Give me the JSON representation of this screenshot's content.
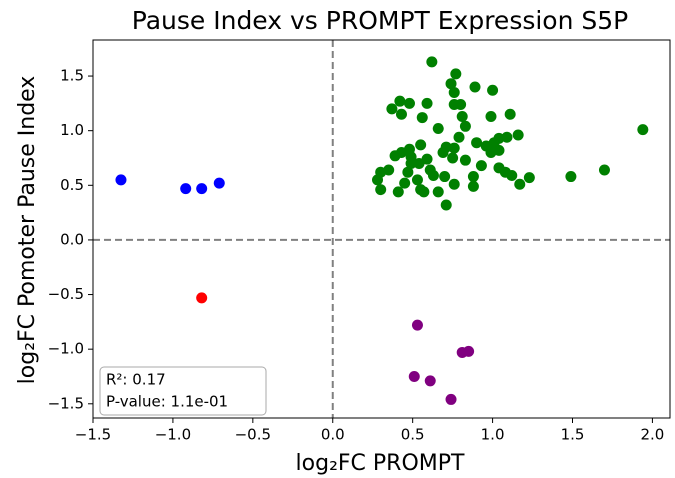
{
  "chart_data": {
    "type": "scatter",
    "title": "Pause Index vs PROMPT Expression S5P",
    "xlabel": "log₂FC PROMPT",
    "ylabel": "log₂FC Pomoter Pause Index",
    "annotation": [
      "R²: 0.17",
      "P-value: 1.1e-01"
    ],
    "xlim": [
      -1.5,
      2.11
    ],
    "ylim": [
      -1.63,
      1.83
    ],
    "xticks": [
      {
        "value": -1.5,
        "label": "−1.5"
      },
      {
        "value": -1.0,
        "label": "−1.0"
      },
      {
        "value": -0.5,
        "label": "−0.5"
      },
      {
        "value": 0,
        "label": "0.0"
      },
      0.5,
      {
        "value": 1,
        "label": "1.0"
      },
      1.5,
      {
        "value": 2,
        "label": "2.0"
      }
    ],
    "yticks": [
      {
        "value": -1.5,
        "label": "−1.5"
      },
      {
        "value": -1.0,
        "label": "−1.0"
      },
      {
        "value": -0.5,
        "label": "−0.5"
      },
      {
        "value": 0,
        "label": "0.0"
      },
      0.5,
      {
        "value": 1,
        "label": "1.0"
      },
      1.5
    ],
    "series": [
      {
        "color": "#0000ff",
        "x": [
          -1.325,
          -0.92,
          -0.82,
          -0.71
        ],
        "values": [
          0.55,
          0.47,
          0.47,
          0.52
        ]
      },
      {
        "color": "#ff0000",
        "x": [
          -0.82
        ],
        "values": [
          -0.53
        ]
      },
      {
        "color": "#800080",
        "x": [
          0.53,
          0.51,
          0.61,
          0.81,
          0.85,
          0.74
        ],
        "values": [
          -0.78,
          -1.25,
          -1.29,
          -1.03,
          -1.02,
          -1.46
        ]
      },
      {
        "color": "#008000",
        "x": [
          0.62,
          0.77,
          0.74,
          0.89,
          1.0,
          0.76,
          0.8,
          0.42,
          0.48,
          0.59,
          0.76,
          0.37,
          0.43,
          0.56,
          0.81,
          0.99,
          1.11,
          0.66,
          0.83,
          0.79,
          1.04,
          1.09,
          1.16,
          1.94,
          0.9,
          0.96,
          1.01,
          0.55,
          0.71,
          0.76,
          0.99,
          1.04,
          0.48,
          0.43,
          0.49,
          0.39,
          0.59,
          0.69,
          0.75,
          0.83,
          0.49,
          0.54,
          0.93,
          1.04,
          1.12,
          0.35,
          0.3,
          0.47,
          0.61,
          0.63,
          0.7,
          0.88,
          1.08,
          1.23,
          1.49,
          1.7,
          0.28,
          0.45,
          0.53,
          0.76,
          0.88,
          1.17,
          0.3,
          0.41,
          0.55,
          0.66,
          0.71,
          0.57
        ],
        "values": [
          1.63,
          1.52,
          1.43,
          1.4,
          1.37,
          1.35,
          1.24,
          1.27,
          1.25,
          1.25,
          1.24,
          1.2,
          1.15,
          1.12,
          1.13,
          1.13,
          1.15,
          1.02,
          1.04,
          0.94,
          0.93,
          0.94,
          0.96,
          1.01,
          0.89,
          0.86,
          0.89,
          0.87,
          0.85,
          0.84,
          0.8,
          0.82,
          0.83,
          0.8,
          0.76,
          0.77,
          0.74,
          0.8,
          0.75,
          0.73,
          0.7,
          0.7,
          0.68,
          0.66,
          0.59,
          0.64,
          0.62,
          0.62,
          0.64,
          0.59,
          0.58,
          0.58,
          0.62,
          0.57,
          0.58,
          0.64,
          0.55,
          0.52,
          0.55,
          0.51,
          0.49,
          0.51,
          0.46,
          0.44,
          0.46,
          0.44,
          0.32,
          0.44
        ]
      }
    ]
  }
}
